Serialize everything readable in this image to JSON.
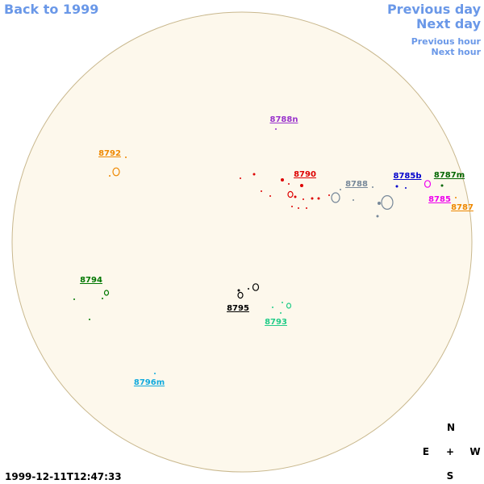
{
  "navigation": {
    "back": "Back to 1999",
    "previous_day": "Previous day",
    "next_day": "Next day",
    "previous_hour": "Previous hour",
    "next_hour": "Next hour"
  },
  "regions": [
    {
      "label": "8788n",
      "color": "#9933cc"
    },
    {
      "label": "8792",
      "color": "#ee8800"
    },
    {
      "label": "8790",
      "color": "#dd0000"
    },
    {
      "label": "8788",
      "color": "#778899"
    },
    {
      "label": "8785b",
      "color": "#0000cc"
    },
    {
      "label": "8787m",
      "color": "#006600"
    },
    {
      "label": "8785",
      "color": "#ee00ee"
    },
    {
      "label": "8787",
      "color": "#ee8800"
    },
    {
      "label": "8794",
      "color": "#007700"
    },
    {
      "label": "8795",
      "color": "#000000"
    },
    {
      "label": "8793",
      "color": "#22cc88"
    },
    {
      "label": "8796m",
      "color": "#11aadd"
    }
  ],
  "timestamp": "1999-12-11T12:47:33",
  "compass": {
    "north": "N",
    "east": "E",
    "center": "+",
    "west": "W",
    "south": "S"
  }
}
